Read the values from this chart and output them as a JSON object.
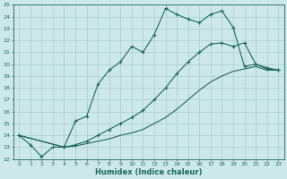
{
  "title": "",
  "xlabel": "Humidex (Indice chaleur)",
  "bg_color": "#cce8e8",
  "line_color": "#1a6b5a",
  "grid_color": "#aacccc",
  "xlim": [
    -0.5,
    23.5
  ],
  "ylim": [
    12,
    25
  ],
  "xticks": [
    0,
    1,
    2,
    3,
    4,
    5,
    6,
    7,
    8,
    9,
    10,
    11,
    12,
    13,
    14,
    15,
    16,
    17,
    18,
    19,
    20,
    21,
    22,
    23
  ],
  "yticks": [
    12,
    13,
    14,
    15,
    16,
    17,
    18,
    19,
    20,
    21,
    22,
    23,
    24,
    25
  ],
  "line1_x": [
    0,
    1,
    2,
    3,
    4,
    5,
    6,
    7,
    8,
    9,
    10,
    11,
    12,
    13,
    14,
    15,
    16,
    17,
    18,
    19,
    20,
    21,
    22,
    23
  ],
  "line1_y": [
    14,
    13.2,
    12.2,
    13,
    13,
    15.2,
    15.6,
    18.3,
    19.5,
    20.2,
    21.5,
    21.0,
    22.5,
    24.7,
    24.2,
    23.8,
    23.5,
    24.2,
    24.5,
    23.1,
    19.8,
    20.0,
    19.7,
    19.5
  ],
  "line2_x": [
    0,
    4,
    5,
    6,
    7,
    8,
    9,
    10,
    11,
    12,
    13,
    14,
    15,
    16,
    17,
    18,
    19,
    20,
    21,
    22,
    23
  ],
  "line2_y": [
    14,
    13,
    13.2,
    13.5,
    14.0,
    14.5,
    15.0,
    15.5,
    16.1,
    17.0,
    18.0,
    19.2,
    20.2,
    21.0,
    21.7,
    21.8,
    21.5,
    21.8,
    20.0,
    19.6,
    19.5
  ],
  "line3_x": [
    0,
    4,
    5,
    6,
    7,
    8,
    9,
    10,
    11,
    12,
    13,
    14,
    15,
    16,
    17,
    18,
    19,
    20,
    21,
    22,
    23
  ],
  "line3_y": [
    14,
    13,
    13.1,
    13.3,
    13.5,
    13.7,
    14.0,
    14.2,
    14.5,
    15.0,
    15.5,
    16.2,
    17.0,
    17.8,
    18.5,
    19.0,
    19.4,
    19.6,
    19.8,
    19.5,
    19.5
  ]
}
